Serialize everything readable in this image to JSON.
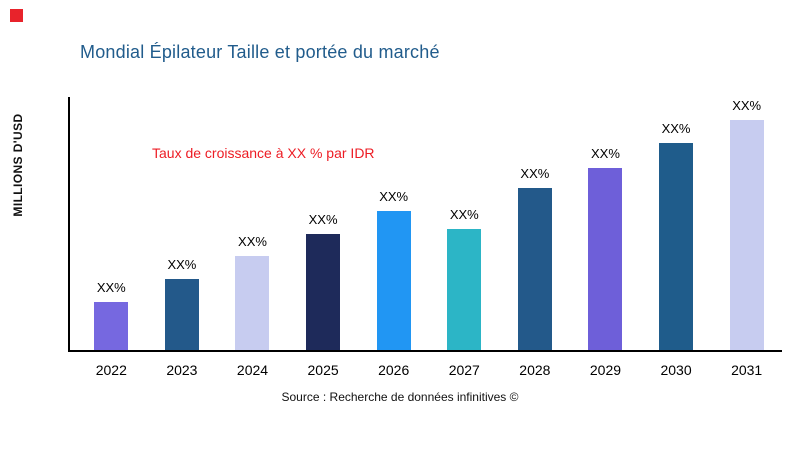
{
  "brand": {
    "color": "#e8232b"
  },
  "chart_data": {
    "type": "bar",
    "title": "Mondial Épilateur Taille et portée du marché",
    "ylabel": "MILLIONS D'USD",
    "annotation": "Taux de croissance à XX % par IDR",
    "source": "Source : Recherche de données infinitives ©",
    "categories": [
      "2022",
      "2023",
      "2024",
      "2025",
      "2026",
      "2027",
      "2028",
      "2029",
      "2030",
      "2031"
    ],
    "values": [
      19,
      28,
      37,
      46,
      55,
      48,
      64,
      72,
      82,
      91
    ],
    "bar_labels": [
      "XX%",
      "XX%",
      "XX%",
      "XX%",
      "XX%",
      "XX%",
      "XX%",
      "XX%",
      "XX%",
      "XX%"
    ],
    "bar_colors": [
      "#7668e0",
      "#23598a",
      "#c7ccf0",
      "#1e2a5a",
      "#2196f3",
      "#2cb5c6",
      "#23598a",
      "#6e5fd9",
      "#1f5c8b",
      "#c7ccf0"
    ],
    "ylim": [
      0,
      100
    ],
    "legend": "none",
    "grid": false
  }
}
